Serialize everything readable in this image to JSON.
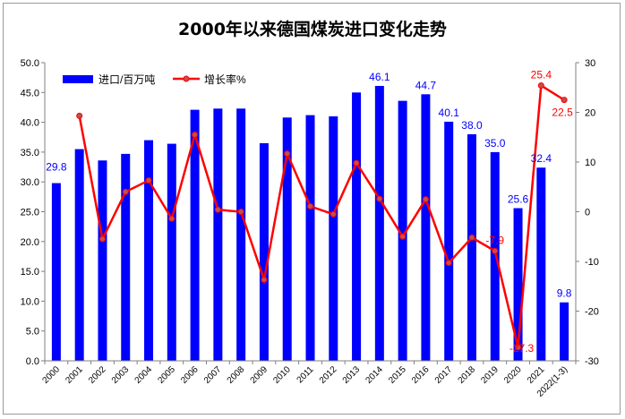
{
  "chart_data": {
    "type": "bar+line",
    "title": "2000年以来德国煤炭进口变化走势",
    "categories": [
      "2000",
      "2001",
      "2002",
      "2003",
      "2004",
      "2005",
      "2006",
      "2007",
      "2008",
      "2009",
      "2010",
      "2011",
      "2012",
      "2013",
      "2014",
      "2015",
      "2016",
      "2017",
      "2018",
      "2019",
      "2020",
      "2021",
      "2022(1-3)"
    ],
    "series": [
      {
        "name": "进口/百万吨",
        "type": "bar",
        "axis": "left",
        "color": "#0000ff",
        "values": [
          29.8,
          35.5,
          33.6,
          34.7,
          37.0,
          36.4,
          42.1,
          42.3,
          42.3,
          36.5,
          40.8,
          41.2,
          41.0,
          45.0,
          46.1,
          43.6,
          44.7,
          40.1,
          38.0,
          35.0,
          25.6,
          32.4,
          9.8
        ],
        "labels": [
          "29.8",
          "",
          "",
          "",
          "",
          "",
          "",
          "",
          "",
          "",
          "",
          "",
          "",
          "",
          "46.1",
          "",
          "44.7",
          "40.1",
          "38.0",
          "35.0",
          "25.6",
          "32.4",
          "9.8"
        ]
      },
      {
        "name": "增长率%",
        "type": "line",
        "axis": "right",
        "color": "#ff0000",
        "values": [
          null,
          19.3,
          -5.5,
          4.0,
          6.3,
          -1.4,
          15.5,
          0.4,
          0.0,
          -13.7,
          11.7,
          1.1,
          -0.5,
          9.8,
          2.6,
          -5.0,
          2.5,
          -10.3,
          -5.2,
          -7.9,
          -27.3,
          25.4,
          22.5
        ],
        "labels": [
          "",
          "",
          "",
          "",
          "",
          "",
          "",
          "",
          "",
          "",
          "",
          "",
          "",
          "",
          "",
          "",
          "",
          "",
          "",
          "-7.9",
          "-27.3",
          "25.4",
          "22.5"
        ]
      }
    ],
    "y_left": {
      "min": 0,
      "max": 50,
      "step": 5,
      "ticks": [
        "0.0",
        "5.0",
        "10.0",
        "15.0",
        "20.0",
        "25.0",
        "30.0",
        "35.0",
        "40.0",
        "45.0",
        "50.0"
      ]
    },
    "y_right": {
      "min": -30,
      "max": 30,
      "step": 10,
      "ticks": [
        "-30",
        "-20",
        "-10",
        "0",
        "10",
        "20",
        "30"
      ]
    },
    "grid": false,
    "legend_position": "top-left"
  }
}
